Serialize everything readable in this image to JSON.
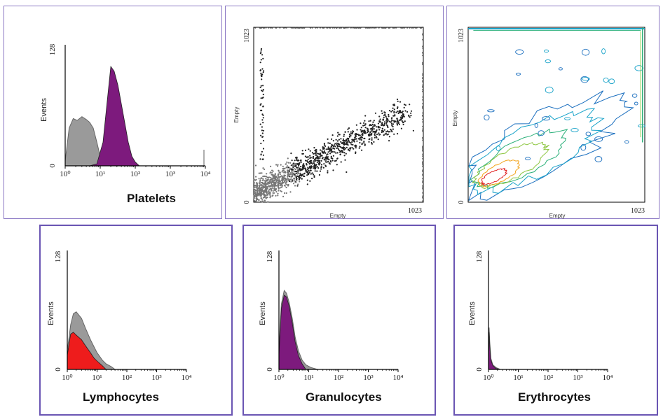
{
  "panels": {
    "platelets": {
      "title": "Platelets",
      "ylabel": "Events",
      "ymax": "128",
      "ymin": "0",
      "xticks": [
        "10⁰",
        "10¹",
        "10²",
        "10³",
        "10⁴"
      ]
    },
    "scatter": {
      "xlabel": "Empty",
      "ylabel": "Empty",
      "xmax": "1023",
      "ymax": "1023",
      "ymin": "0"
    },
    "contour": {
      "xlabel": "Empty",
      "ylabel": "Empty",
      "xmax": "1023",
      "ymax": "1023",
      "ymin": "0"
    },
    "lymphocytes": {
      "title": "Lymphocytes",
      "ylabel": "Events",
      "ymax": "128",
      "ymin": "0",
      "xticks": [
        "10⁰",
        "10¹",
        "10²",
        "10³",
        "10⁴"
      ]
    },
    "granulocytes": {
      "title": "Granulocytes",
      "ylabel": "Events",
      "ymax": "128",
      "ymin": "0",
      "xticks": [
        "10⁰",
        "10¹",
        "10²",
        "10³",
        "10⁴"
      ]
    },
    "erythrocytes": {
      "title": "Erythrocytes",
      "ylabel": "Events",
      "ymax": "128",
      "ymin": "0",
      "xticks": [
        "10⁰",
        "10¹",
        "10²",
        "10³",
        "10⁴"
      ]
    }
  },
  "colors": {
    "purple": "#7d1a7d",
    "gray": "#9a9a9a",
    "red": "#ee1c1c",
    "border": "#6a55b3"
  },
  "chart_data": [
    {
      "type": "area",
      "title": "Platelets",
      "ylabel": "Events",
      "xscale": "log",
      "xlim": [
        1,
        10000
      ],
      "ylim": [
        0,
        128
      ],
      "series": [
        {
          "color": "gray",
          "x": [
            1,
            1.3,
            1.7,
            2.2,
            3,
            4,
            5,
            6.3,
            8,
            10,
            12
          ],
          "values": [
            5,
            40,
            50,
            48,
            52,
            49,
            46,
            40,
            25,
            10,
            2
          ]
        },
        {
          "color": "purple",
          "x": [
            5,
            8,
            12,
            16,
            20,
            25,
            32,
            45,
            63,
            80,
            100,
            130
          ],
          "values": [
            0,
            2,
            25,
            70,
            105,
            100,
            85,
            55,
            25,
            10,
            4,
            0
          ]
        }
      ]
    },
    {
      "type": "scatter",
      "xlabel": "Empty",
      "ylabel": "Empty",
      "xlim": [
        0,
        1023
      ],
      "ylim": [
        0,
        1023
      ]
    },
    {
      "type": "heatmap",
      "xlabel": "Empty",
      "ylabel": "Empty",
      "xlim": [
        0,
        1023
      ],
      "ylim": [
        0,
        1023
      ]
    },
    {
      "type": "area",
      "title": "Lymphocytes",
      "ylabel": "Events",
      "xscale": "log",
      "xlim": [
        1,
        10000
      ],
      "ylim": [
        0,
        128
      ],
      "series": [
        {
          "color": "gray",
          "x": [
            1,
            1.3,
            1.6,
            2,
            3,
            4,
            6,
            8,
            10,
            15,
            20,
            30,
            40
          ],
          "values": [
            20,
            48,
            60,
            62,
            55,
            45,
            32,
            24,
            18,
            10,
            6,
            3,
            0
          ]
        },
        {
          "color": "red",
          "x": [
            1,
            1.3,
            1.6,
            2,
            3,
            4,
            6,
            8,
            10,
            15,
            20
          ],
          "values": [
            15,
            38,
            40,
            37,
            32,
            26,
            18,
            12,
            9,
            4,
            0
          ]
        }
      ]
    },
    {
      "type": "area",
      "title": "Granulocytes",
      "ylabel": "Events",
      "xscale": "log",
      "xlim": [
        1,
        10000
      ],
      "ylim": [
        0,
        128
      ],
      "series": [
        {
          "color": "gray",
          "x": [
            1,
            1.2,
            1.5,
            1.8,
            2.2,
            2.8,
            3.5,
            4.5,
            6,
            8,
            12,
            20
          ],
          "values": [
            20,
            70,
            85,
            82,
            72,
            55,
            35,
            20,
            10,
            5,
            2,
            0
          ]
        },
        {
          "color": "purple",
          "x": [
            1,
            1.2,
            1.5,
            1.8,
            2.2,
            2.8,
            3.5,
            4.5,
            6,
            8
          ],
          "values": [
            15,
            65,
            80,
            78,
            68,
            50,
            30,
            15,
            6,
            0
          ]
        }
      ]
    },
    {
      "type": "area",
      "title": "Erythrocytes",
      "ylabel": "Events",
      "xscale": "log",
      "xlim": [
        1,
        10000
      ],
      "ylim": [
        0,
        128
      ],
      "series": [
        {
          "color": "gray",
          "x": [
            1,
            1.05,
            1.1,
            1.2,
            1.4,
            1.8,
            2.5
          ],
          "values": [
            0,
            45,
            30,
            12,
            5,
            2,
            0
          ]
        },
        {
          "color": "purple",
          "x": [
            1,
            1.05,
            1.1,
            1.2,
            1.4,
            1.8,
            2.5
          ],
          "values": [
            0,
            40,
            25,
            10,
            4,
            1,
            0
          ]
        }
      ]
    }
  ]
}
